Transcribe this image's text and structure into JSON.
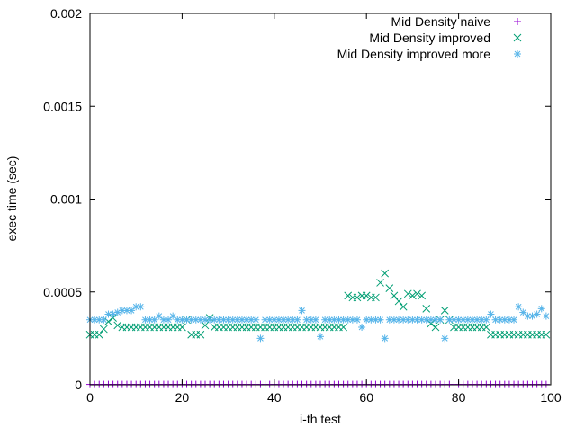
{
  "chart_data": {
    "type": "scatter",
    "title": "",
    "xlabel": "i-th test",
    "ylabel": "exec time (sec)",
    "xlim": [
      0,
      100
    ],
    "ylim": [
      0,
      0.002
    ],
    "xticks": [
      "0",
      "20",
      "40",
      "60",
      "80",
      "100"
    ],
    "yticks": [
      "0",
      "0.0005",
      "0.001",
      "0.0015",
      "0.002"
    ],
    "grid": false,
    "legend_position": "top-right",
    "series": [
      {
        "name": "Mid Density naive",
        "marker": "plus",
        "color": "#9400d3",
        "values": [
          2e-06,
          2e-06,
          2e-06,
          2e-06,
          2e-06,
          2e-06,
          2e-06,
          2e-06,
          2e-06,
          2e-06,
          2e-06,
          2e-06,
          2e-06,
          2e-06,
          2e-06,
          2e-06,
          2e-06,
          2e-06,
          2e-06,
          2e-06,
          2e-06,
          2e-06,
          2e-06,
          2e-06,
          2e-06,
          2e-06,
          2e-06,
          2e-06,
          2e-06,
          2e-06,
          2e-06,
          2e-06,
          2e-06,
          2e-06,
          2e-06,
          2e-06,
          2e-06,
          2e-06,
          2e-06,
          2e-06,
          2e-06,
          2e-06,
          2e-06,
          2e-06,
          2e-06,
          2e-06,
          2e-06,
          2e-06,
          2e-06,
          2e-06,
          2e-06,
          2e-06,
          2e-06,
          2e-06,
          2e-06,
          2e-06,
          2e-06,
          2e-06,
          2e-06,
          2e-06,
          2e-06,
          2e-06,
          2e-06,
          2e-06,
          2e-06,
          2e-06,
          2e-06,
          2e-06,
          2e-06,
          2e-06,
          2e-06,
          2e-06,
          2e-06,
          2e-06,
          2e-06,
          2e-06,
          2e-06,
          2e-06,
          2e-06,
          2e-06,
          2e-06,
          2e-06,
          2e-06,
          2e-06,
          2e-06,
          2e-06,
          2e-06,
          2e-06,
          2e-06,
          2e-06,
          2e-06,
          2e-06,
          2e-06,
          2e-06,
          2e-06,
          2e-06,
          2e-06,
          2e-06,
          2e-06,
          2e-06
        ]
      },
      {
        "name": "Mid Density improved",
        "marker": "cross",
        "color": "#009e73",
        "values": [
          0.00027,
          0.00027,
          0.00027,
          0.0003,
          0.00034,
          0.00036,
          0.00032,
          0.00031,
          0.00031,
          0.00031,
          0.00031,
          0.00031,
          0.00031,
          0.00031,
          0.00031,
          0.00031,
          0.00031,
          0.00031,
          0.00031,
          0.00031,
          0.00031,
          0.00035,
          0.00027,
          0.00027,
          0.00027,
          0.00032,
          0.00036,
          0.00031,
          0.00031,
          0.00031,
          0.00031,
          0.00031,
          0.00031,
          0.00031,
          0.00031,
          0.00031,
          0.00031,
          0.00031,
          0.00031,
          0.00031,
          0.00031,
          0.00031,
          0.00031,
          0.00031,
          0.00031,
          0.00031,
          0.00031,
          0.00031,
          0.00031,
          0.00031,
          0.00031,
          0.00031,
          0.00031,
          0.00031,
          0.00031,
          0.00031,
          0.00048,
          0.00047,
          0.00047,
          0.00048,
          0.00048,
          0.00047,
          0.00047,
          0.00055,
          0.0006,
          0.00052,
          0.00048,
          0.00045,
          0.00042,
          0.00049,
          0.00048,
          0.00049,
          0.00048,
          0.00041,
          0.00033,
          0.00031,
          0.00035,
          0.0004,
          0.00035,
          0.00031,
          0.00031,
          0.00031,
          0.00031,
          0.00031,
          0.00031,
          0.00031,
          0.00031,
          0.00027,
          0.00027,
          0.00027,
          0.00027,
          0.00027,
          0.00027,
          0.00027,
          0.00027,
          0.00027,
          0.00027,
          0.00027,
          0.00027,
          0.00027
        ]
      },
      {
        "name": "Mid Density improved more",
        "marker": "star",
        "color": "#56b4e9",
        "values": [
          0.00035,
          0.00035,
          0.00035,
          0.00035,
          0.00038,
          0.00038,
          0.00039,
          0.0004,
          0.0004,
          0.0004,
          0.00042,
          0.00042,
          0.00035,
          0.00035,
          0.00035,
          0.00037,
          0.00035,
          0.00035,
          0.00037,
          0.00035,
          0.00035,
          0.00035,
          0.00035,
          0.00035,
          0.00035,
          0.00035,
          0.00035,
          0.00035,
          0.00035,
          0.00035,
          0.00035,
          0.00035,
          0.00035,
          0.00035,
          0.00035,
          0.00035,
          0.00035,
          0.00025,
          0.00035,
          0.00035,
          0.00035,
          0.00035,
          0.00035,
          0.00035,
          0.00035,
          0.00035,
          0.0004,
          0.00035,
          0.00035,
          0.00035,
          0.00026,
          0.00035,
          0.00035,
          0.00035,
          0.00035,
          0.00035,
          0.00035,
          0.00035,
          0.00035,
          0.00031,
          0.00035,
          0.00035,
          0.00035,
          0.00035,
          0.00025,
          0.00035,
          0.00035,
          0.00035,
          0.00035,
          0.00035,
          0.00035,
          0.00035,
          0.00035,
          0.00035,
          0.00035,
          0.00035,
          0.00035,
          0.00025,
          0.00035,
          0.00035,
          0.00035,
          0.00035,
          0.00035,
          0.00035,
          0.00035,
          0.00035,
          0.00035,
          0.00038,
          0.00035,
          0.00035,
          0.00035,
          0.00035,
          0.00035,
          0.00042,
          0.00039,
          0.00037,
          0.00037,
          0.00038,
          0.00041,
          0.00037
        ]
      }
    ]
  }
}
